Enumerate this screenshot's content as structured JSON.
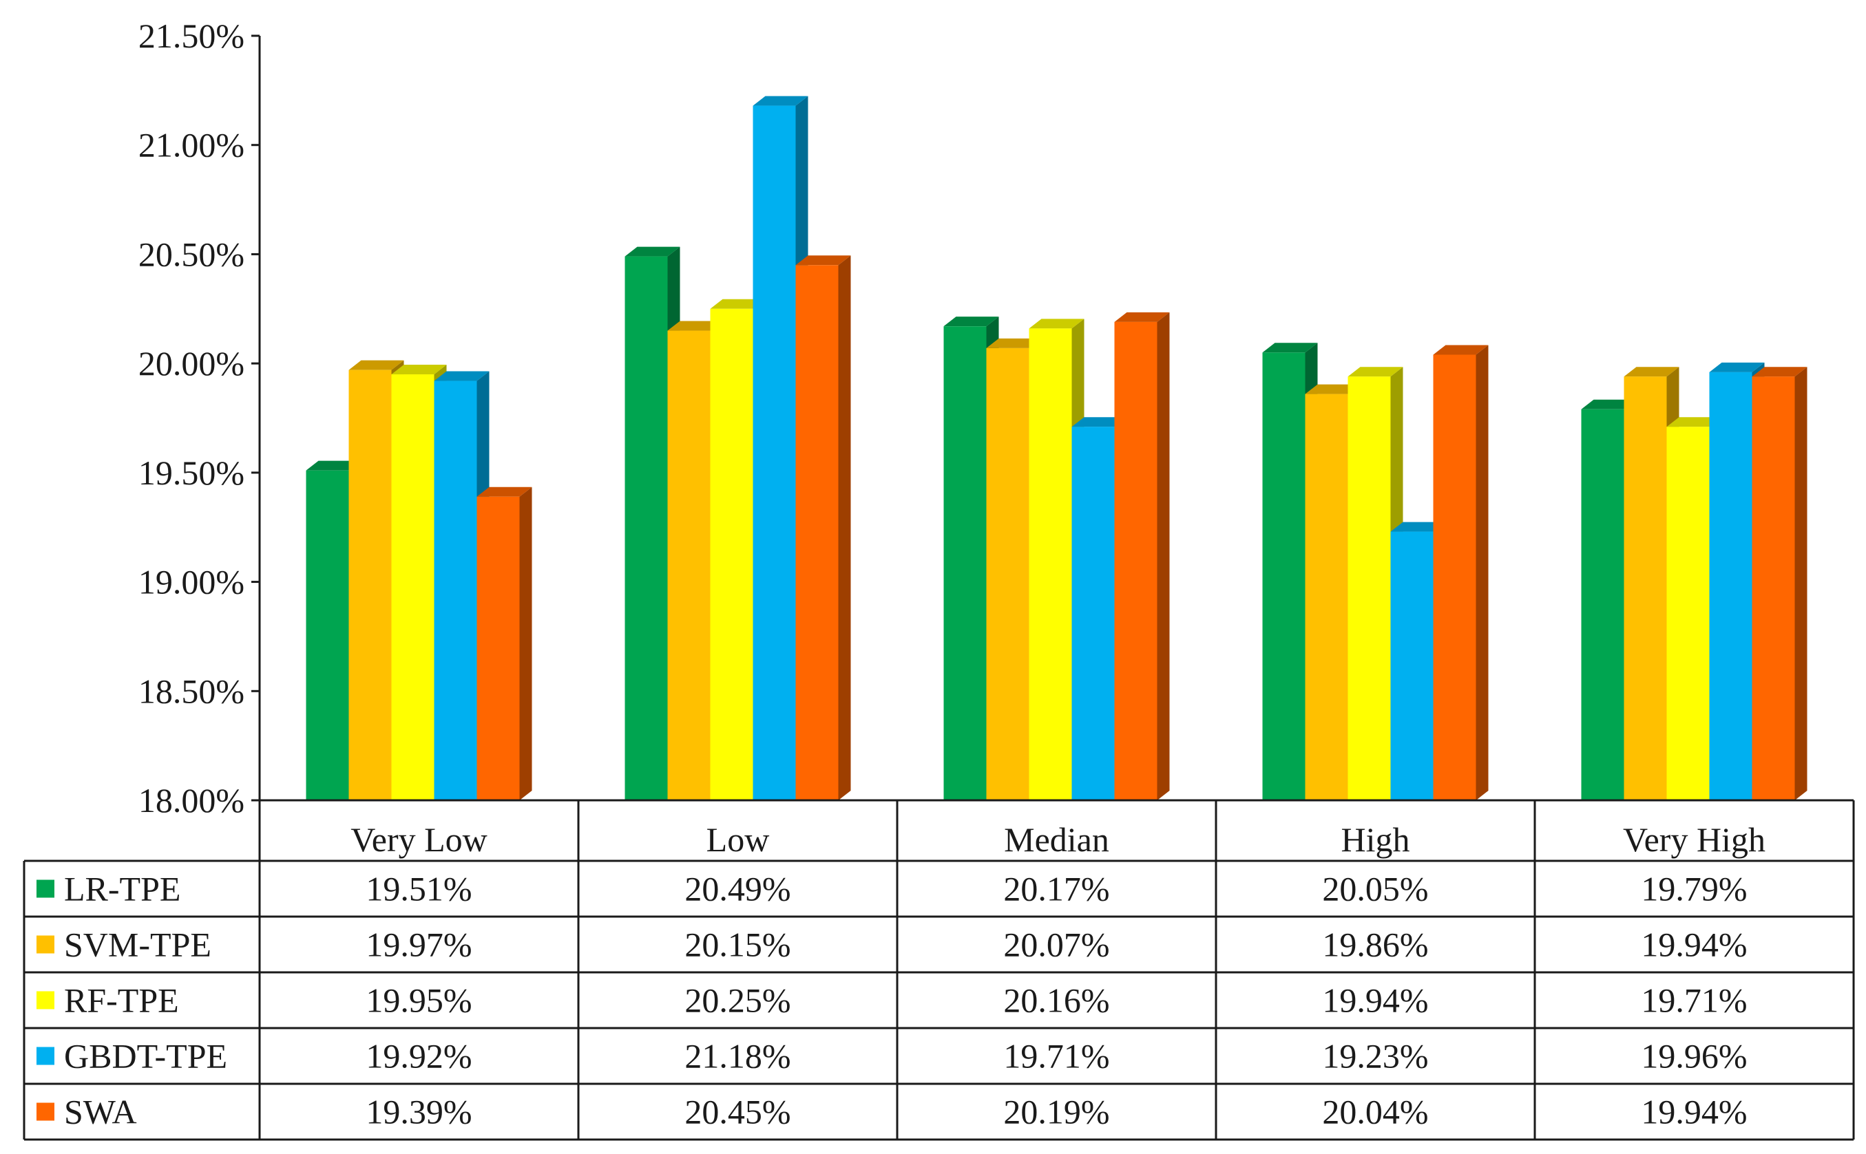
{
  "chart_data": {
    "type": "bar",
    "title": "",
    "xlabel": "",
    "ylabel": "",
    "ylim": [
      18.0,
      21.5
    ],
    "yticks": [
      18.0,
      18.5,
      19.0,
      19.5,
      20.0,
      20.5,
      21.0,
      21.5
    ],
    "ytick_labels": [
      "18.00%",
      "18.50%",
      "19.00%",
      "19.50%",
      "20.00%",
      "20.50%",
      "21.00%",
      "21.50%"
    ],
    "categories": [
      "Very Low",
      "Low",
      "Median",
      "High",
      "Very High"
    ],
    "legend": "data-table",
    "grid": false,
    "bar_style": "3d",
    "series": [
      {
        "name": "LR-TPE",
        "color": "#00A550",
        "values": [
          19.51,
          20.49,
          20.17,
          20.05,
          19.79
        ],
        "labels": [
          "19.51%",
          "20.49%",
          "20.17%",
          "20.05%",
          "19.79%"
        ]
      },
      {
        "name": "SVM-TPE",
        "color": "#FFC000",
        "values": [
          19.97,
          20.15,
          20.07,
          19.86,
          19.94
        ],
        "labels": [
          "19.97%",
          "20.15%",
          "20.07%",
          "19.86%",
          "19.94%"
        ]
      },
      {
        "name": "RF-TPE",
        "color": "#FFFF00",
        "values": [
          19.95,
          20.25,
          20.16,
          19.94,
          19.71
        ],
        "labels": [
          "19.95%",
          "20.25%",
          "20.16%",
          "19.94%",
          "19.71%"
        ]
      },
      {
        "name": "GBDT-TPE",
        "color": "#00B0F0",
        "values": [
          19.92,
          21.18,
          19.71,
          19.23,
          19.96
        ],
        "labels": [
          "19.92%",
          "21.18%",
          "19.71%",
          "19.23%",
          "19.96%"
        ]
      },
      {
        "name": "SWA",
        "color": "#FF6600",
        "values": [
          19.39,
          20.45,
          20.19,
          20.04,
          19.94
        ],
        "labels": [
          "19.39%",
          "20.45%",
          "20.19%",
          "20.04%",
          "19.94%"
        ]
      }
    ]
  }
}
